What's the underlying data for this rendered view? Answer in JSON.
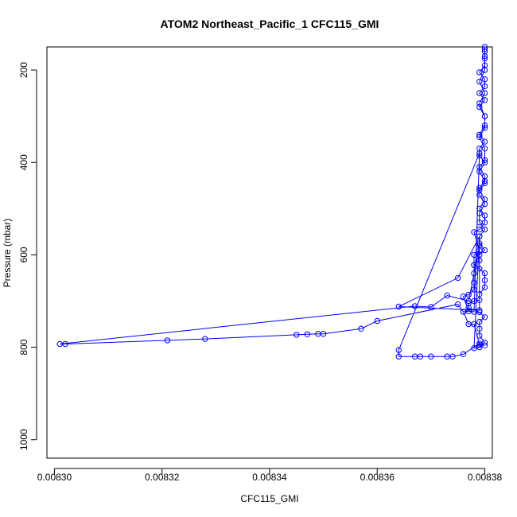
{
  "chart_data": {
    "type": "line",
    "title": "ATOM2 Northeast_Pacific_1 CFC115_GMI",
    "xlabel": "CFC115_GMI",
    "ylabel": "Pressure (mbar)",
    "xlim": [
      0.0083,
      0.00838
    ],
    "ylim": [
      1040,
      150
    ],
    "y_inverted": true,
    "grid": false,
    "marker": "open-circle",
    "line_color": "#0000ff",
    "x_ticks": [
      0.0083,
      0.00832,
      0.00834,
      0.00836,
      0.00838
    ],
    "x_tick_labels": [
      "0.00830",
      "0.00832",
      "0.00834",
      "0.00836",
      "0.00838"
    ],
    "y_ticks": [
      200,
      400,
      600,
      800,
      1000
    ],
    "y_tick_labels": [
      "200",
      "400",
      "600",
      "800",
      "1000"
    ],
    "series": [
      {
        "points": [
          [
            0.00838,
            150
          ],
          [
            0.00838,
            160
          ],
          [
            0.00838,
            175
          ],
          [
            0.00838,
            190
          ],
          [
            0.008379,
            205
          ],
          [
            0.00838,
            220
          ],
          [
            0.00838,
            235
          ],
          [
            0.008379,
            250
          ],
          [
            0.00838,
            265
          ],
          [
            0.008379,
            280
          ],
          [
            0.00838,
            300
          ],
          [
            0.00838,
            320
          ],
          [
            0.008379,
            340
          ],
          [
            0.00838,
            355
          ],
          [
            0.008379,
            370
          ],
          [
            0.008379,
            385
          ],
          [
            0.00838,
            400
          ],
          [
            0.008379,
            420
          ],
          [
            0.00838,
            440
          ],
          [
            0.008379,
            455
          ],
          [
            0.008379,
            470
          ],
          [
            0.00838,
            490
          ],
          [
            0.008379,
            510
          ],
          [
            0.008379,
            530
          ],
          [
            0.00838,
            545
          ],
          [
            0.008379,
            560
          ],
          [
            0.008379,
            575
          ],
          [
            0.00838,
            590
          ],
          [
            0.008379,
            600
          ],
          [
            0.008379,
            612
          ],
          [
            0.008378,
            622
          ],
          [
            0.008379,
            630
          ],
          [
            0.00838,
            640
          ],
          [
            0.00838,
            655
          ],
          [
            0.00838,
            670
          ],
          [
            0.008379,
            685
          ],
          [
            0.008379,
            698
          ],
          [
            0.008378,
            700
          ],
          [
            0.008377,
            705
          ],
          [
            0.008377,
            715
          ],
          [
            0.008379,
            724
          ],
          [
            0.00838,
            735
          ],
          [
            0.008379,
            745
          ],
          [
            0.008379,
            760
          ],
          [
            0.008379,
            775
          ],
          [
            0.00838,
            790
          ],
          [
            0.008379,
            800
          ],
          [
            0.008378,
            802
          ],
          [
            0.008379,
            560
          ],
          [
            0.008375,
            650
          ],
          [
            0.008364,
            712
          ],
          [
            0.008379,
            720
          ],
          [
            0.008379,
            580
          ],
          [
            0.008377,
            700
          ],
          [
            0.008373,
            688
          ],
          [
            0.00837,
            713
          ],
          [
            0.008367,
            711
          ],
          [
            0.008301,
            793
          ],
          [
            0.008302,
            793
          ],
          [
            0.008321,
            785
          ],
          [
            0.008328,
            782
          ],
          [
            0.008345,
            773
          ],
          [
            0.008347,
            772
          ],
          [
            0.008349,
            771
          ],
          [
            0.00835,
            771
          ],
          [
            0.008357,
            760
          ],
          [
            0.00836,
            743
          ],
          [
            0.008375,
            707
          ],
          [
            0.008376,
            723
          ],
          [
            0.008377,
            722
          ],
          [
            0.008378,
            723
          ],
          [
            0.008379,
            380
          ],
          [
            0.008364,
            806
          ],
          [
            0.008364,
            820
          ],
          [
            0.008367,
            820
          ],
          [
            0.008368,
            820
          ],
          [
            0.00837,
            820
          ],
          [
            0.008373,
            820
          ],
          [
            0.008374,
            820
          ],
          [
            0.008376,
            815
          ],
          [
            0.008379,
            792
          ],
          [
            0.00838,
            796
          ],
          [
            0.008379,
            795
          ],
          [
            0.008378,
            750
          ],
          [
            0.008377,
            750
          ],
          [
            0.008376,
            723
          ],
          [
            0.008377,
            722
          ],
          [
            0.008376,
            690
          ],
          [
            0.008377,
            686
          ],
          [
            0.008378,
            675
          ],
          [
            0.008378,
            660
          ],
          [
            0.008378,
            640
          ],
          [
            0.008378,
            622
          ],
          [
            0.008378,
            600
          ],
          [
            0.008379,
            590
          ],
          [
            0.008378,
            551
          ],
          [
            0.008379,
            545
          ],
          [
            0.00838,
            530
          ],
          [
            0.00838,
            515
          ],
          [
            0.008379,
            500
          ],
          [
            0.00838,
            480
          ],
          [
            0.008379,
            460
          ],
          [
            0.00838,
            445
          ],
          [
            0.00838,
            430
          ],
          [
            0.008379,
            410
          ],
          [
            0.00838,
            395
          ],
          [
            0.00838,
            370
          ],
          [
            0.008379,
            345
          ],
          [
            0.00838,
            325
          ],
          [
            0.00838,
            300
          ],
          [
            0.008379,
            272
          ],
          [
            0.00838,
            250
          ],
          [
            0.008379,
            225
          ],
          [
            0.00838,
            200
          ],
          [
            0.00838,
            170
          ],
          [
            0.00838,
            155
          ]
        ]
      }
    ]
  }
}
